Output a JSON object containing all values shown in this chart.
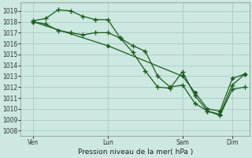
{
  "background_color": "#cce8e0",
  "grid_color": "#a0c8c0",
  "line_color": "#1a5c1a",
  "xlabel": "Pression niveau de la mer( hPa )",
  "ytick_values": [
    1008,
    1009,
    1010,
    1011,
    1012,
    1013,
    1014,
    1015,
    1016,
    1017,
    1018,
    1019
  ],
  "xtick_labels": [
    "Ven",
    "Lun",
    "Sam",
    "Dim"
  ],
  "xtick_positions": [
    0.5,
    3.5,
    6.5,
    8.5
  ],
  "ylim": [
    1007.5,
    1019.8
  ],
  "xlim": [
    0.0,
    9.2
  ],
  "line1_x": [
    0.5,
    1.0,
    1.5,
    2.0,
    2.5,
    3.0,
    3.5,
    4.0,
    4.5,
    5.0,
    5.5,
    6.0,
    6.5,
    7.0,
    7.5,
    8.0,
    8.5,
    9.0
  ],
  "line1_y": [
    1018.1,
    1018.3,
    1019.1,
    1019.0,
    1018.5,
    1018.2,
    1018.2,
    1016.5,
    1015.2,
    1013.5,
    1012.0,
    1011.9,
    1013.4,
    1011.2,
    1009.8,
    1009.5,
    1012.2,
    1013.2
  ],
  "line2_x": [
    0.5,
    1.0,
    1.5,
    2.0,
    2.5,
    3.0,
    3.5,
    4.0,
    4.5,
    5.0,
    5.5,
    6.0,
    6.5,
    7.0,
    7.5,
    8.0,
    8.5,
    9.0
  ],
  "line2_y": [
    1018.0,
    1017.8,
    1017.2,
    1017.0,
    1016.8,
    1017.0,
    1017.0,
    1016.5,
    1015.8,
    1015.3,
    1013.0,
    1012.0,
    1012.2,
    1010.5,
    1009.8,
    1009.4,
    1011.8,
    1012.0
  ],
  "line3_x": [
    0.5,
    3.5,
    6.5,
    7.0,
    7.5,
    8.0,
    8.5,
    9.0
  ],
  "line3_y": [
    1018.0,
    1015.8,
    1013.0,
    1011.5,
    1010.0,
    1009.8,
    1012.8,
    1013.2
  ]
}
